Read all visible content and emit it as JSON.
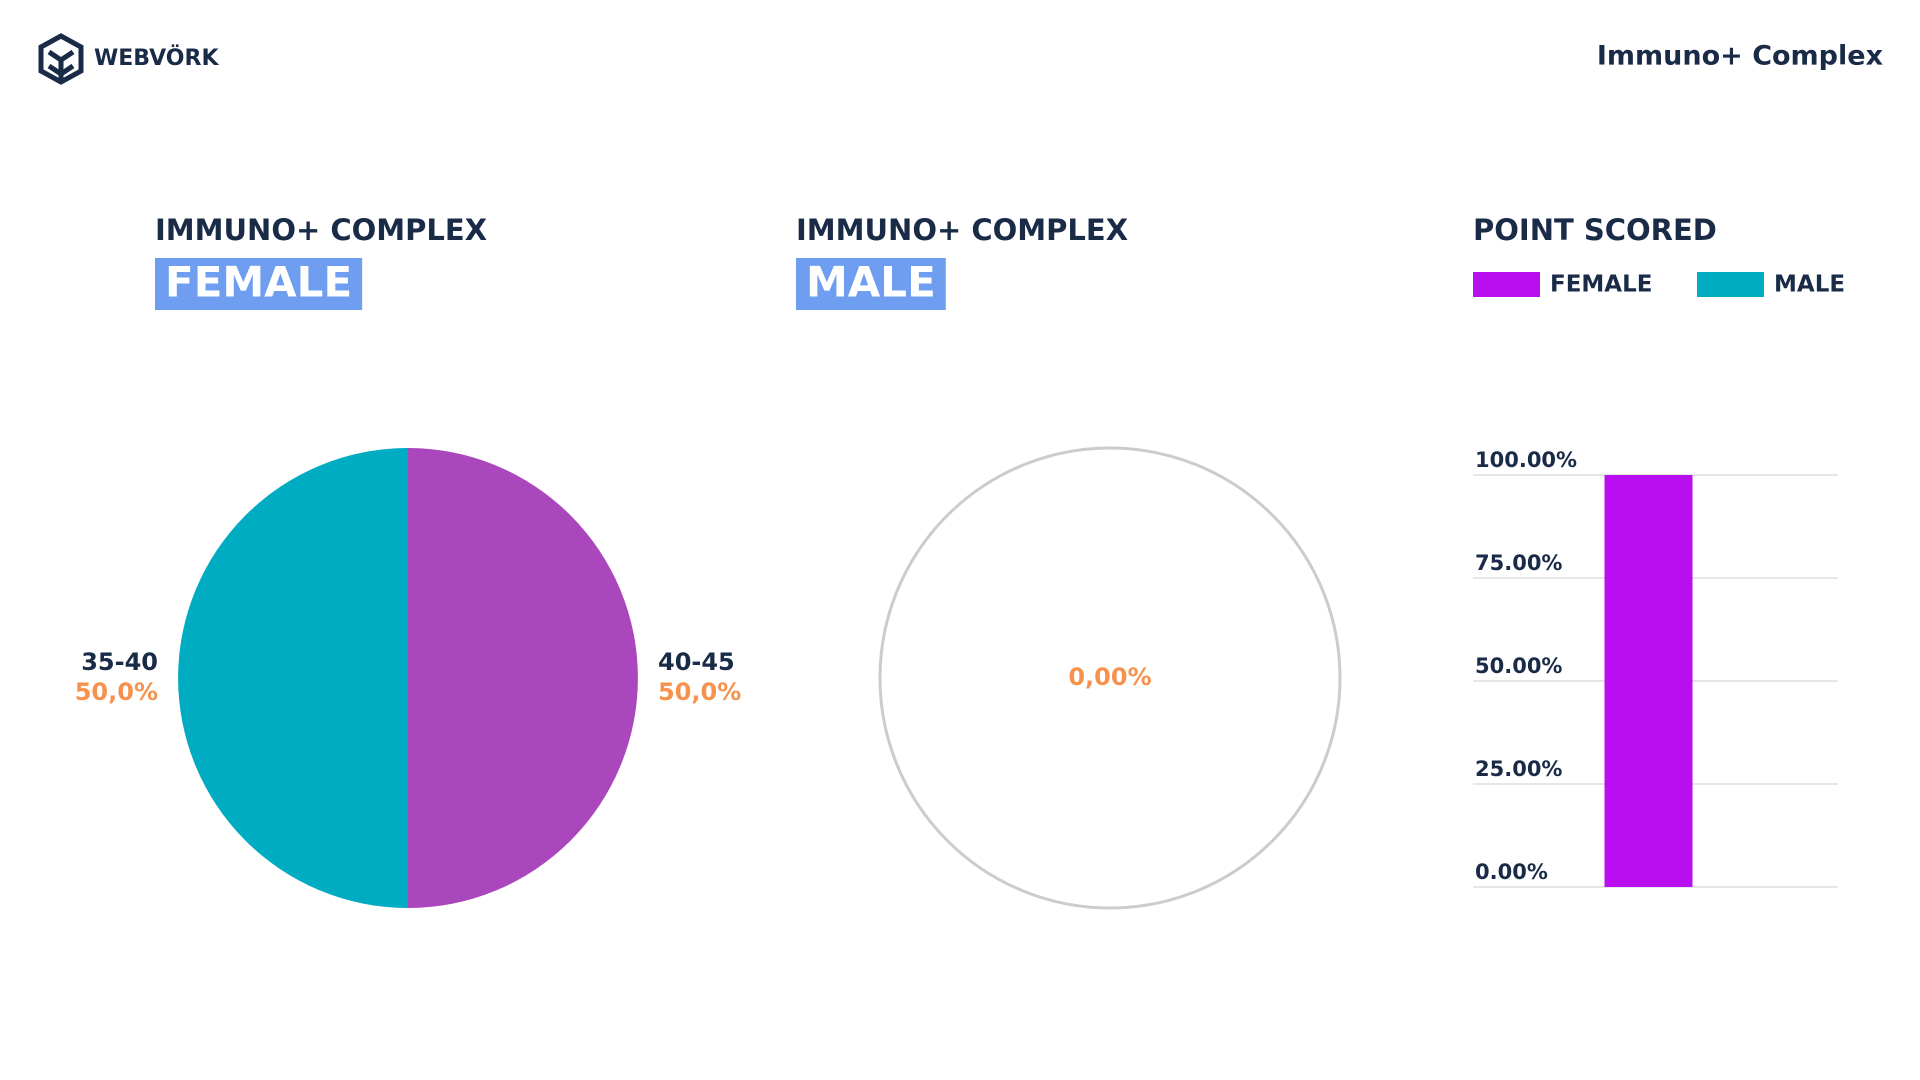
{
  "header": {
    "logo": "WEBVÖRK",
    "title": "Immuno+ Complex"
  },
  "chart_data": [
    {
      "type": "pie",
      "title": "IMMUNO+ COMPLEX",
      "subtitle": "FEMALE",
      "categories": [
        "40-45",
        "35-40"
      ],
      "values": [
        50,
        50
      ],
      "value_labels": [
        "50,0%",
        "50,0%"
      ],
      "colors": [
        "#ab47bc",
        "#00acc1"
      ]
    },
    {
      "type": "pie",
      "title": "IMMUNO+ COMPLEX",
      "subtitle": "MALE",
      "categories": [
        null
      ],
      "values": [
        0
      ],
      "value_labels": [
        "0,00%"
      ],
      "colors": [
        "#00acc1"
      ]
    },
    {
      "type": "bar",
      "title": "POINT SCORED",
      "categories": [
        null
      ],
      "series": [
        {
          "name": "FEMALE",
          "color": "#b90ef0",
          "values": [
            100
          ]
        },
        {
          "name": "MALE",
          "color": "#00acc1",
          "values": [
            0
          ]
        }
      ],
      "ylim": [
        0,
        100
      ],
      "yticks": [
        {
          "value": 0,
          "label": "0.00%"
        },
        {
          "value": 25,
          "label": "25.00%"
        },
        {
          "value": 50,
          "label": "50.00%"
        },
        {
          "value": 75,
          "label": "75.00%"
        },
        {
          "value": 100,
          "label": "100.00%"
        }
      ],
      "grid": true
    }
  ]
}
